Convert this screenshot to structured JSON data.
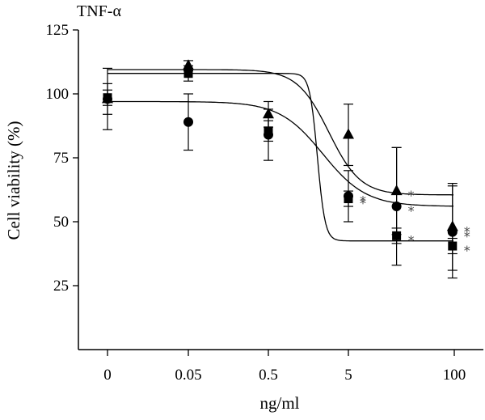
{
  "chart_data": {
    "type": "scatter",
    "title": "TNF-α",
    "xlabel": "ng/ml",
    "ylabel": "Cell viability (%)",
    "x_scale": "log (categorical positions)",
    "categories": [
      "0",
      "0.05",
      "0.5",
      "5",
      "100"
    ],
    "ylim": [
      0,
      125
    ],
    "y_ticks": [
      25,
      50,
      75,
      100,
      125
    ],
    "grid": false,
    "series": [
      {
        "marker": "circle",
        "points": [
          {
            "x": "0",
            "y": 98,
            "err": 12
          },
          {
            "x": "0.05",
            "y": 89,
            "err": 11
          },
          {
            "x": "0.5",
            "y": 84,
            "err": 10
          },
          {
            "x": "5",
            "y": 60,
            "err": 10,
            "significant": true
          },
          {
            "x": "20",
            "y": 56,
            "err": 23,
            "significant": true
          },
          {
            "x": "100",
            "y": 46,
            "err": 18,
            "significant": true
          }
        ],
        "fit": {
          "top": 97,
          "bottom": 56,
          "mid": 2.4,
          "slope": 1.6
        }
      },
      {
        "marker": "square",
        "points": [
          {
            "x": "0",
            "y": 98.5,
            "err": 3
          },
          {
            "x": "0.05",
            "y": 108,
            "err": 3
          },
          {
            "x": "0.5",
            "y": 85.5,
            "err": 4
          },
          {
            "x": "5",
            "y": 59,
            "err": 3,
            "significant": true
          },
          {
            "x": "20",
            "y": 44.5,
            "err": 3,
            "significant": true
          },
          {
            "x": "100",
            "y": 40.5,
            "err": 3,
            "significant": true
          }
        ],
        "fit": {
          "top": 108,
          "bottom": 42.5,
          "mid": 2.05,
          "slope": 9
        }
      },
      {
        "marker": "triangle",
        "points": [
          {
            "x": "0",
            "y": 98,
            "err": 6
          },
          {
            "x": "0.05",
            "y": 111,
            "err": 2
          },
          {
            "x": "0.5",
            "y": 92,
            "err": 5
          },
          {
            "x": "5",
            "y": 84,
            "err": 12
          },
          {
            "x": "20",
            "y": 62,
            "err": 17,
            "significant": true
          },
          {
            "x": "100",
            "y": 48,
            "err": 17,
            "significant": true
          }
        ],
        "fit": {
          "top": 109.5,
          "bottom": 60.5,
          "mid": 2.85,
          "slope": 2.2
        }
      }
    ],
    "significance_symbol": "*"
  }
}
